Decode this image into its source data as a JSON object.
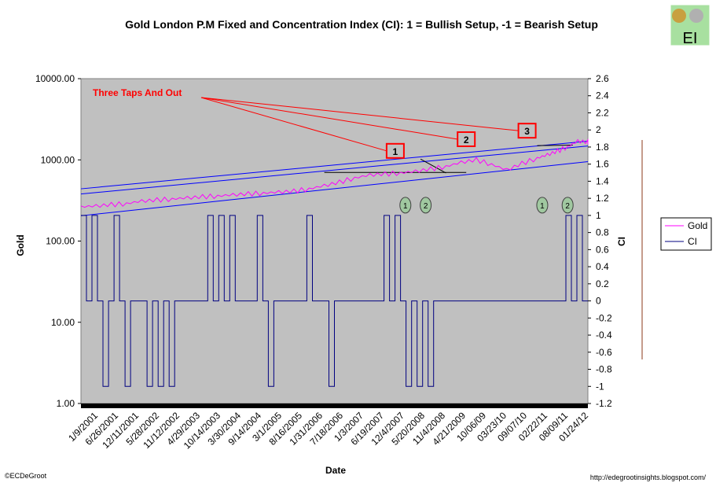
{
  "chart_data": {
    "type": "line",
    "title": "Gold London P.M Fixed and Concentration Index (CI): 1 = Bullish Setup, -1 = Bearish Setup",
    "xlabel": "Date",
    "ylabel_left": "Gold",
    "ylabel_right": "CI",
    "y_left_scale": "log",
    "y_left_ticks": [
      "10000.00",
      "1000.00",
      "100.00",
      "10.00",
      "1.00"
    ],
    "y_right_ticks": [
      "2.6",
      "2.4",
      "2.2",
      "2",
      "1.8",
      "1.6",
      "1.4",
      "1.2",
      "1",
      "0.8",
      "0.6",
      "0.4",
      "0.2",
      "0",
      "-0.2",
      "-0.4",
      "-0.6",
      "-0.8",
      "-1",
      "-1.2"
    ],
    "ylim_right": [
      -1.2,
      2.6
    ],
    "x_ticks": [
      "1/9/2001",
      "6/26/2001",
      "12/11/2001",
      "5/28/2002",
      "11/12/2002",
      "4/29/2003",
      "10/14/2003",
      "3/30/2004",
      "9/14/2004",
      "3/1/2005",
      "8/16/2005",
      "1/31/2006",
      "7/18/2006",
      "1/3/2007",
      "6/19/2007",
      "12/4/2007",
      "5/20/2008",
      "11/4/2008",
      "4/21/2009",
      "10/06/09",
      "03/23/10",
      "09/07/10",
      "02/22/11",
      "08/09/11",
      "01/24/12"
    ],
    "legend_position": "right",
    "grid": false,
    "background_color": "#c0c0c0",
    "gold_x": [
      0,
      3,
      6,
      9,
      12,
      15,
      18,
      21,
      24,
      27,
      30,
      33,
      36,
      39,
      42,
      45,
      48,
      51,
      54,
      57,
      60,
      63,
      66,
      69,
      72,
      75,
      78,
      81,
      84,
      87,
      90,
      92,
      94,
      96,
      98,
      100
    ],
    "series": [
      {
        "name": "Gold",
        "color": "#ff00ff",
        "values": [
          265,
          270,
          280,
          290,
          310,
          320,
          330,
          340,
          350,
          360,
          370,
          380,
          390,
          400,
          410,
          440,
          480,
          530,
          600,
          650,
          670,
          690,
          720,
          770,
          830,
          930,
          1000,
          880,
          750,
          900,
          1050,
          1150,
          1280,
          1450,
          1700,
          1650
        ]
      },
      {
        "name": "CI",
        "color": "#000080",
        "values": [
          1,
          0,
          1,
          0,
          -1,
          0,
          1,
          0,
          -1,
          0,
          0,
          0,
          -1,
          0,
          -1,
          0,
          -1,
          0,
          0,
          0,
          0,
          0,
          0,
          1,
          0,
          1,
          0,
          1,
          0,
          0,
          0,
          0,
          1,
          0,
          -1,
          0,
          0,
          0,
          0,
          0,
          0,
          1,
          0,
          0,
          0,
          -1,
          0,
          0,
          0,
          0,
          0,
          0,
          0,
          0,
          0,
          1,
          0,
          1,
          0,
          -1,
          0,
          -1,
          0,
          -1,
          0,
          0,
          0,
          0,
          0,
          0,
          0,
          0,
          0,
          0,
          0,
          0,
          0,
          0,
          0,
          0,
          0,
          0,
          0,
          0,
          0,
          0,
          0,
          0,
          1,
          0,
          1,
          0
        ]
      }
    ],
    "trendlines": [
      {
        "from_x": 0,
        "from_y": 440,
        "to_x": 100,
        "to_y": 1700,
        "color": "#0000ff"
      },
      {
        "from_x": 0,
        "from_y": 380,
        "to_x": 100,
        "to_y": 1480,
        "color": "#0000ff"
      },
      {
        "from_x": 0,
        "from_y": 205,
        "to_x": 100,
        "to_y": 950,
        "color": "#0000ff"
      },
      {
        "from_x": 48,
        "from_y": 700,
        "to_x": 76,
        "to_y": 700,
        "color": "#000000"
      },
      {
        "from_x": 67,
        "from_y": 1020,
        "to_x": 72,
        "to_y": 690,
        "color": "#000000"
      },
      {
        "from_x": 90,
        "from_y": 1500,
        "to_x": 97,
        "to_y": 1520,
        "color": "#000000"
      }
    ],
    "annotations": {
      "main_label": "Three Taps And Out",
      "taps": [
        {
          "label": "1",
          "x": 62,
          "value": 790
        },
        {
          "label": "2",
          "x": 76,
          "value": 1100
        },
        {
          "label": "3",
          "x": 88,
          "value": 1400
        }
      ],
      "circles": [
        {
          "label": "1",
          "x": 64,
          "ci": 1.12
        },
        {
          "label": "2",
          "x": 68,
          "ci": 1.12
        },
        {
          "label": "1",
          "x": 91,
          "ci": 1.12
        },
        {
          "label": "2",
          "x": 96,
          "ci": 1.12
        }
      ]
    }
  },
  "logo_text": "EI",
  "footer_left": "©ECDeGroot",
  "footer_right": "http://edegrootinsights.blogspot.com/"
}
